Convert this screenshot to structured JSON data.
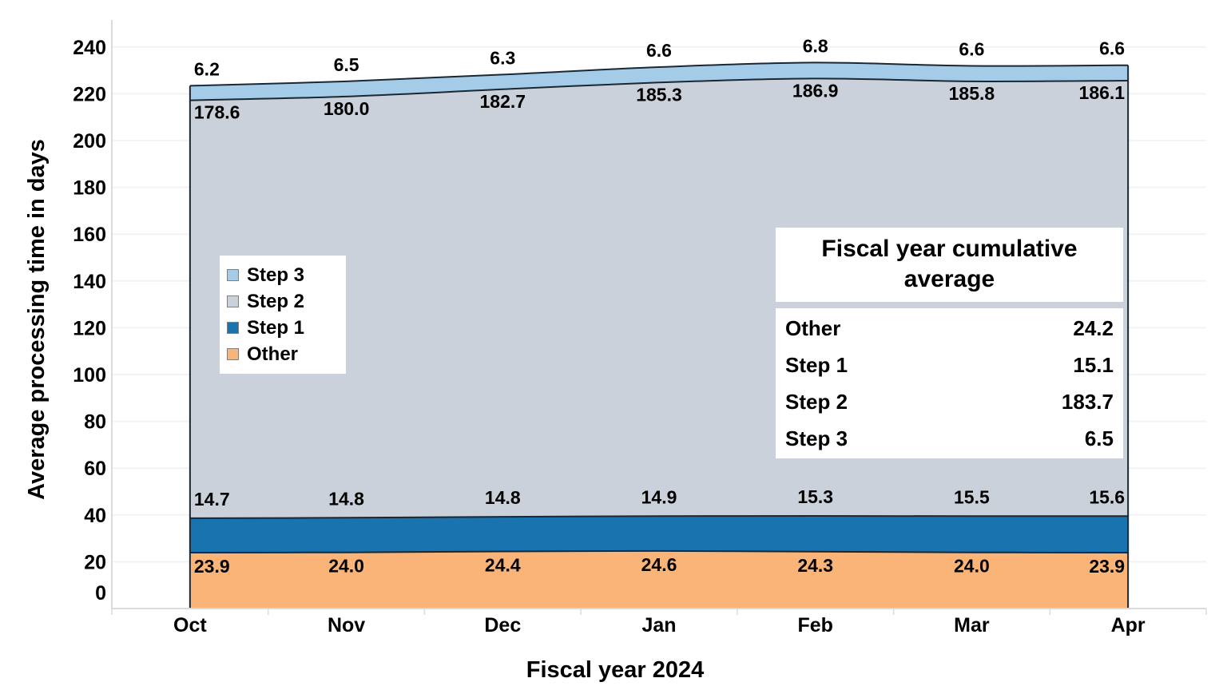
{
  "chart_data": {
    "type": "area",
    "stacked": true,
    "smooth": true,
    "title": "",
    "xlabel": "Fiscal year 2024",
    "ylabel": "Average processing time in days",
    "categories": [
      "Oct",
      "Nov",
      "Dec",
      "Jan",
      "Feb",
      "Mar",
      "Apr"
    ],
    "ylim": [
      0,
      240
    ],
    "y_ticks": [
      0,
      20,
      40,
      60,
      80,
      100,
      120,
      140,
      160,
      180,
      200,
      220,
      240
    ],
    "grid": "horizontal",
    "series": [
      {
        "name": "Other",
        "color": "#FAB478",
        "values": [
          23.9,
          24.0,
          24.4,
          24.6,
          24.3,
          24.0,
          23.9
        ]
      },
      {
        "name": "Step 1",
        "color": "#1973AE",
        "values": [
          14.7,
          14.8,
          14.8,
          14.9,
          15.3,
          15.5,
          15.6
        ]
      },
      {
        "name": "Step 2",
        "color": "#CBD1DA",
        "values": [
          178.6,
          180.0,
          182.7,
          185.3,
          186.9,
          185.8,
          186.1
        ]
      },
      {
        "name": "Step 3",
        "color": "#A4CCE9",
        "values": [
          6.2,
          6.5,
          6.3,
          6.6,
          6.8,
          6.6,
          6.6
        ]
      }
    ],
    "legend": {
      "position": "middle-left",
      "items": [
        {
          "label": "Step 3"
        },
        {
          "label": "Step 2"
        },
        {
          "label": "Step 1"
        },
        {
          "label": "Other"
        }
      ]
    },
    "annotation_table": {
      "title": "Fiscal year cumulative average",
      "rows": [
        {
          "label": "Other",
          "value": "24.2"
        },
        {
          "label": "Step 1",
          "value": "15.1"
        },
        {
          "label": "Step 2",
          "value": "183.7"
        },
        {
          "label": "Step 3",
          "value": "6.5"
        }
      ]
    },
    "style": {
      "outline_color": "#1B2733",
      "grid_color": "#F2F3F5",
      "axis_color": "#D8DBDF",
      "label_color": "#000000"
    }
  }
}
